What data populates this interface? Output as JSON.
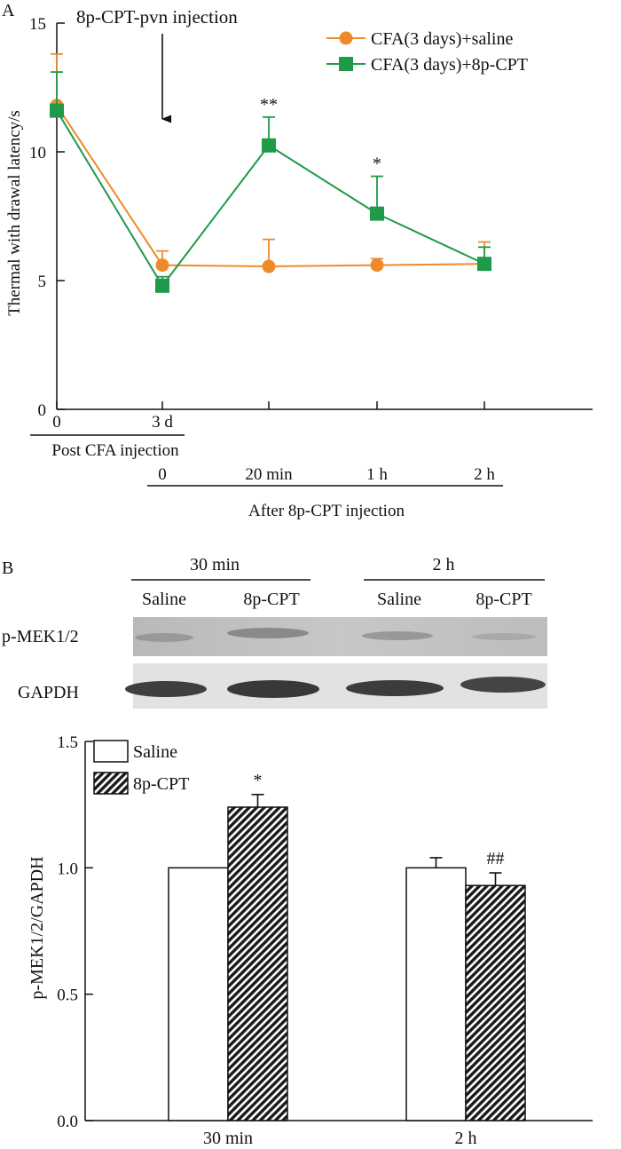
{
  "panel_a": {
    "panel_label": "A",
    "annotation": "8p-CPT-pvn injection",
    "ylabel": "Thermal with drawal latency/s",
    "post_cfa_label": "Post CFA injection",
    "post_cfa_ticks": [
      "0",
      "3 d"
    ],
    "after_label": "After 8p-CPT injection",
    "after_ticks": [
      "0",
      "20 min",
      "1 h",
      "2 h"
    ],
    "y_ticks": [
      "0",
      "5",
      "10",
      "15"
    ]
  },
  "panel_b": {
    "panel_label": "B",
    "blot_time_labels": [
      "30 min",
      "2 h"
    ],
    "blot_lane_labels": [
      "Saline",
      "8p-CPT",
      "Saline",
      "8p-CPT"
    ],
    "blot_rows": [
      "p-MEK1/2",
      "GAPDH"
    ],
    "ylabel": "p-MEK1/2/GAPDH",
    "y_ticks": [
      "0.0",
      "0.5",
      "1.0",
      "1.5"
    ]
  },
  "chart_data": [
    {
      "type": "line",
      "x": [
        "Pre (0)",
        "3 d / 0",
        "20 min",
        "1 h",
        "2 h"
      ],
      "ylabel": "Thermal with drawal latency/s",
      "ylim": [
        0,
        15
      ],
      "series": [
        {
          "name": "CFA(3 days)+saline",
          "color": "#ee8a2c",
          "marker": "circle",
          "values": [
            11.8,
            5.6,
            5.55,
            5.6,
            5.65
          ],
          "error": [
            2.0,
            0.55,
            1.05,
            0.25,
            0.85
          ],
          "significance": [
            "",
            "",
            "",
            "",
            ""
          ]
        },
        {
          "name": "CFA(3 days)+8p-CPT",
          "color": "#1f9a49",
          "marker": "square",
          "values": [
            11.6,
            4.8,
            10.25,
            7.6,
            5.65
          ],
          "error": [
            1.5,
            0.35,
            1.1,
            1.45,
            0.65
          ],
          "significance": [
            "",
            "",
            "**",
            "*",
            ""
          ]
        }
      ],
      "legend_position": "top-right"
    },
    {
      "type": "bar",
      "categories": [
        "30 min",
        "2 h"
      ],
      "ylabel": "p-MEK1/2/GAPDH",
      "ylim": [
        0,
        1.5
      ],
      "series": [
        {
          "name": "Saline",
          "fill": "open",
          "values": [
            1.0,
            1.0
          ],
          "error": [
            0.0,
            0.04
          ],
          "significance": [
            "",
            ""
          ]
        },
        {
          "name": "8p-CPT",
          "fill": "hatched",
          "values": [
            1.24,
            0.93
          ],
          "error": [
            0.05,
            0.05
          ],
          "significance": [
            "*",
            "##"
          ]
        }
      ],
      "legend_position": "top-left"
    }
  ]
}
